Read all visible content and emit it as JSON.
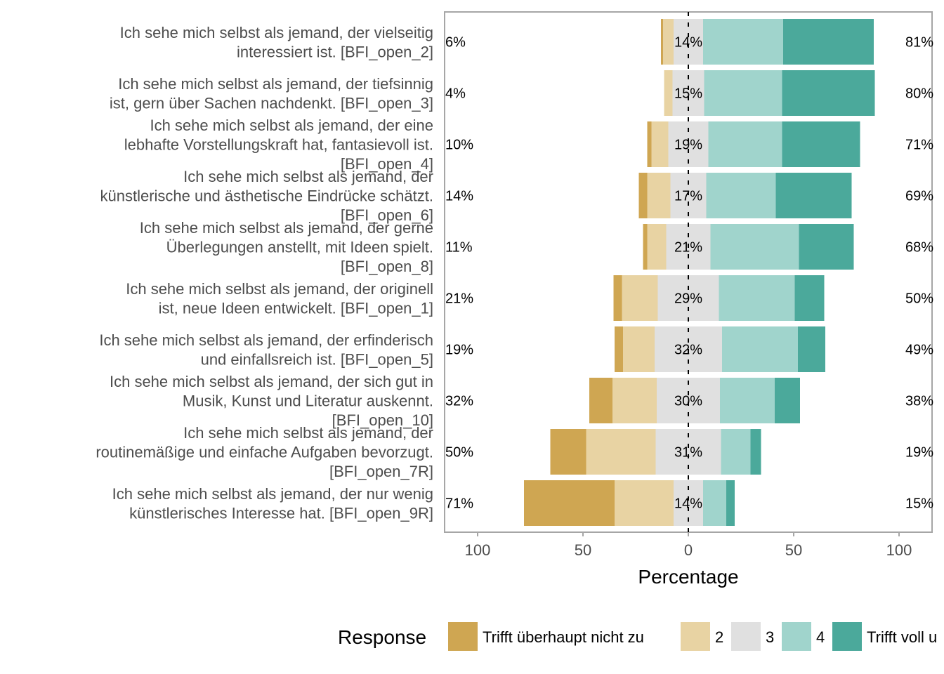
{
  "chart_data": {
    "type": "bar",
    "orientation": "horizontal",
    "stacking": "diverging",
    "xlabel": "Percentage",
    "x_ticks": [
      100,
      50,
      0,
      50,
      100
    ],
    "legend": {
      "title": "Response",
      "placement": "bottom",
      "entries": [
        "Trifft überhaupt nicht zu",
        "2",
        "3",
        "4",
        "Trifft voll u"
      ]
    },
    "colors": [
      "#CFA652",
      "#E8D3A3",
      "#E0E0E0",
      "#A0D4CC",
      "#4BA99B"
    ],
    "items": [
      {
        "label": [
          "Ich sehe mich selbst als jemand, der vielseitig",
          "interessiert ist. [BFI_open_2]"
        ],
        "values": [
          1,
          5,
          14,
          38,
          43
        ],
        "low": "6%",
        "mid": "14%",
        "high": "81%"
      },
      {
        "label": [
          "Ich sehe mich selbst als jemand, der tiefsinnig",
          "ist, gern über Sachen nachdenkt. [BFI_open_3]"
        ],
        "values": [
          0,
          4,
          15,
          37,
          44
        ],
        "low": "4%",
        "mid": "15%",
        "high": "80%"
      },
      {
        "label": [
          "Ich sehe mich selbst als jemand, der eine",
          "lebhafte Vorstellungskraft hat, fantasievoll ist.",
          "[BFI_open_4]"
        ],
        "values": [
          2,
          8,
          19,
          35,
          37
        ],
        "low": "10%",
        "mid": "19%",
        "high": "71%"
      },
      {
        "label": [
          "Ich sehe mich selbst als jemand, der",
          "künstlerische und ästhetische Eindrücke schätzt.",
          "[BFI_open_6]"
        ],
        "values": [
          4,
          11,
          17,
          33,
          36
        ],
        "low": "14%",
        "mid": "17%",
        "high": "69%"
      },
      {
        "label": [
          "Ich sehe mich selbst als jemand, der gerne",
          "Überlegungen anstellt, mit Ideen spielt.",
          "[BFI_open_8]"
        ],
        "values": [
          2,
          9,
          21,
          42,
          26
        ],
        "low": "11%",
        "mid": "21%",
        "high": "68%"
      },
      {
        "label": [
          "Ich sehe mich selbst als jemand, der originell",
          "ist, neue Ideen entwickelt. [BFI_open_1]"
        ],
        "values": [
          4,
          17,
          29,
          36,
          14
        ],
        "low": "21%",
        "mid": "29%",
        "high": "50%"
      },
      {
        "label": [
          "Ich sehe mich selbst als jemand, der erfinderisch",
          "und einfallsreich ist. [BFI_open_5]"
        ],
        "values": [
          4,
          15,
          32,
          36,
          13
        ],
        "low": "19%",
        "mid": "32%",
        "high": "49%"
      },
      {
        "label": [
          "Ich sehe mich selbst als jemand, der sich gut in",
          "Musik, Kunst und Literatur auskennt.",
          "[BFI_open_10]"
        ],
        "values": [
          11,
          21,
          30,
          26,
          12
        ],
        "low": "32%",
        "mid": "30%",
        "high": "38%"
      },
      {
        "label": [
          "Ich sehe mich selbst als jemand, der",
          "routinemäßige und einfache Aufgaben bevorzugt.",
          "[BFI_open_7R]"
        ],
        "values": [
          17,
          33,
          31,
          14,
          5
        ],
        "low": "50%",
        "mid": "31%",
        "high": "19%"
      },
      {
        "label": [
          "Ich sehe mich selbst als jemand, der nur wenig",
          "künstlerisches Interesse hat. [BFI_open_9R]"
        ],
        "values": [
          43,
          28,
          14,
          11,
          4
        ],
        "low": "71%",
        "mid": "14%",
        "high": "15%"
      }
    ]
  }
}
